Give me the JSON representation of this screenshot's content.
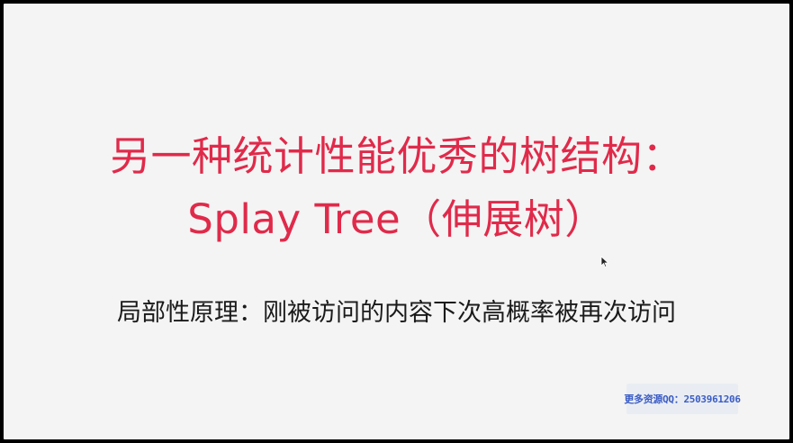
{
  "slide": {
    "title_line_1": "另一种统计性能优秀的树结构：",
    "title_line_2": "Splay Tree（伸展树）",
    "subtitle": "局部性原理：刚被访问的内容下次高概率被再次访问"
  },
  "watermark": {
    "qq_text": "更多资源QQ：2503961206"
  },
  "colors": {
    "title": "#e02a4a",
    "subtitle": "#1a1a1a",
    "background": "#f4f4f4",
    "watermark_text": "#3b5cc4"
  },
  "icons": {
    "cursor": "mouse-pointer-icon"
  }
}
